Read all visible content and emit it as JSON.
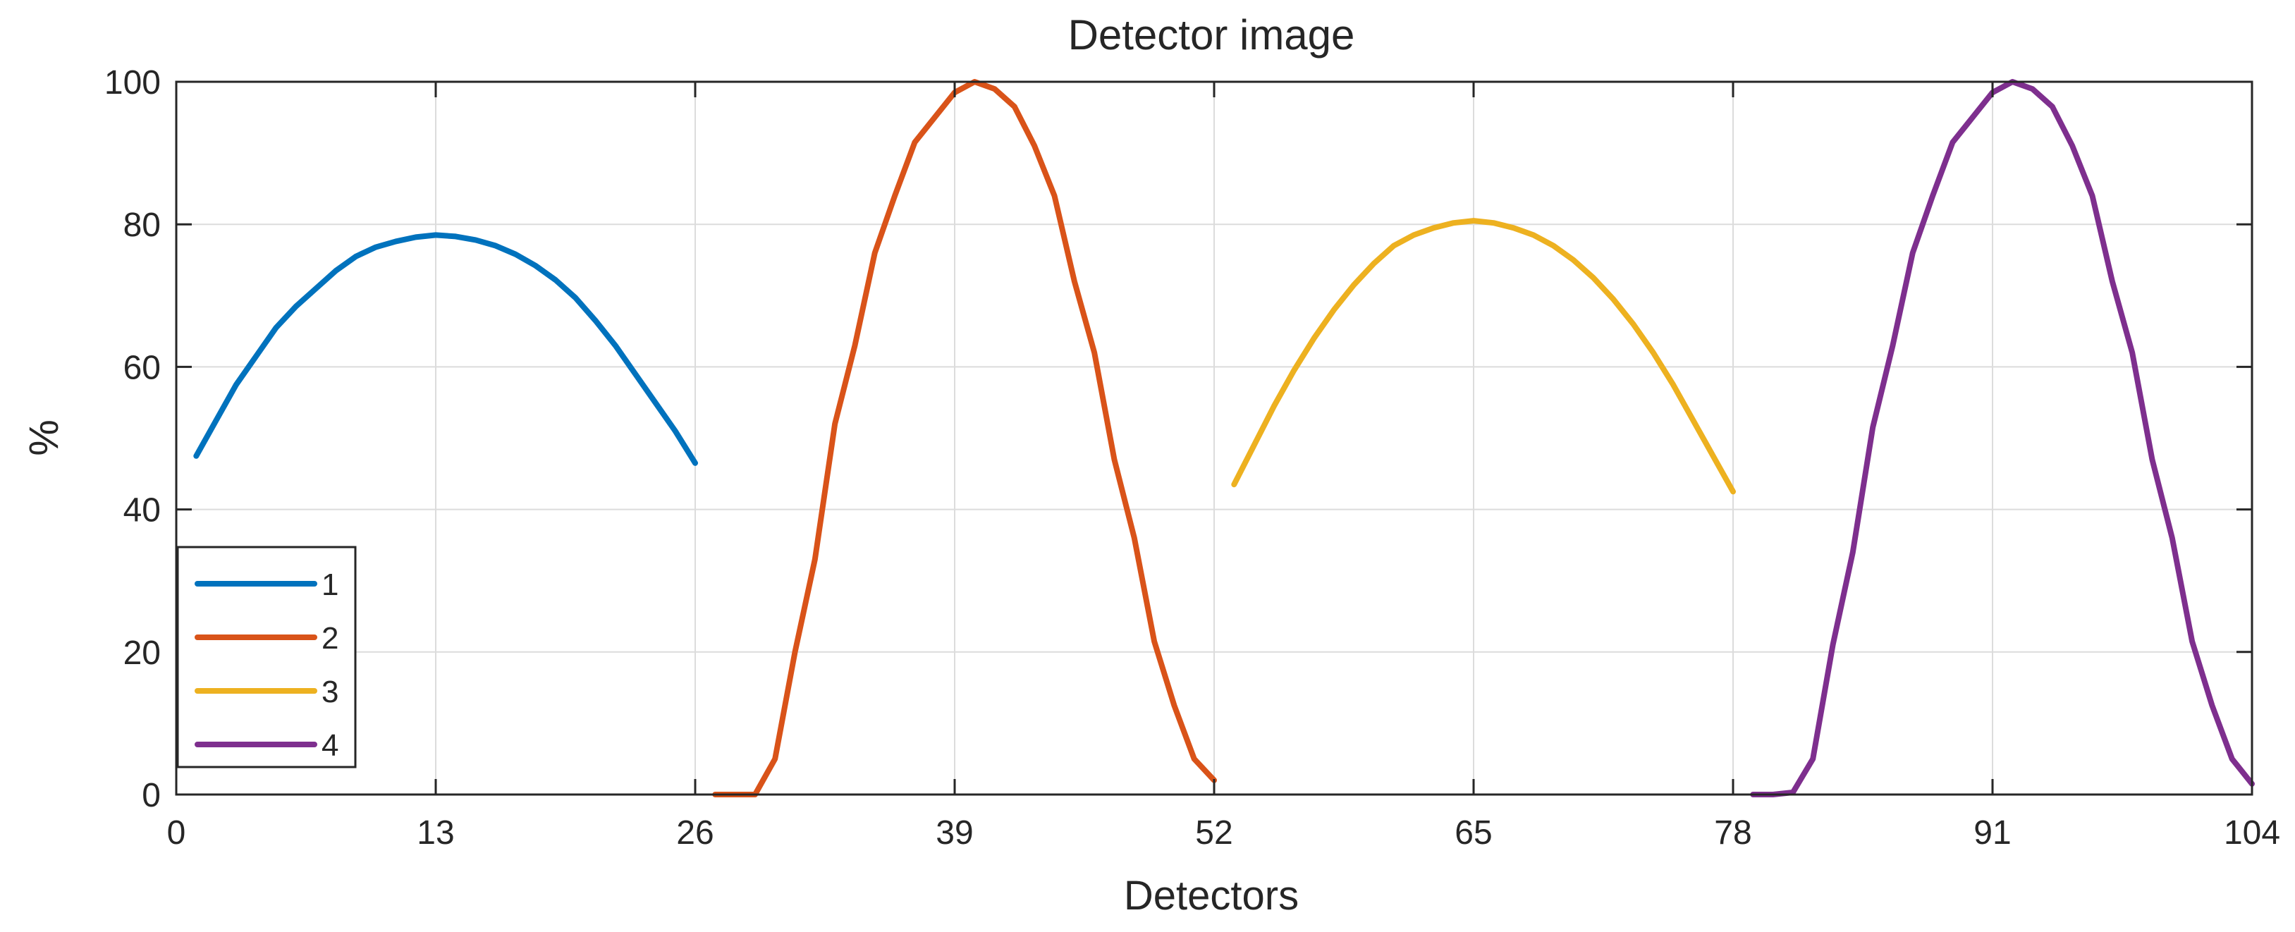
{
  "chart_data": {
    "type": "line",
    "title": "Detector image",
    "xlabel": "Detectors",
    "ylabel": "%",
    "xlim": [
      0,
      104
    ],
    "ylim": [
      0,
      100
    ],
    "xticks": [
      0,
      13,
      26,
      39,
      52,
      65,
      78,
      91,
      104
    ],
    "yticks": [
      0,
      20,
      40,
      60,
      80,
      100
    ],
    "grid": true,
    "legend_position": "bottom-left",
    "series": [
      {
        "name": "1",
        "color": "#0072BD",
        "x": [
          1,
          2,
          3,
          4,
          5,
          6,
          7,
          8,
          9,
          10,
          11,
          12,
          13,
          14,
          15,
          16,
          17,
          18,
          19,
          20,
          21,
          22,
          23,
          24,
          25,
          26
        ],
        "y": [
          47.5,
          52.5,
          57.5,
          61.5,
          65.5,
          68.5,
          71.0,
          73.5,
          75.5,
          76.8,
          77.6,
          78.2,
          78.5,
          78.3,
          77.8,
          77.0,
          75.8,
          74.2,
          72.2,
          69.7,
          66.5,
          63.0,
          59.0,
          55.0,
          51.0,
          46.5
        ]
      },
      {
        "name": "2",
        "color": "#D95319",
        "x": [
          27,
          28,
          29,
          30,
          31,
          32,
          33,
          34,
          35,
          36,
          37,
          38,
          39,
          40,
          41,
          42,
          43,
          44,
          45,
          46,
          47,
          48,
          49,
          50,
          51,
          52
        ],
        "y": [
          0,
          0,
          0,
          5,
          20,
          33,
          52,
          63,
          76,
          84,
          91.5,
          95,
          98.5,
          100,
          99,
          96.5,
          91,
          84,
          72,
          62,
          47,
          36,
          21.5,
          12.5,
          5,
          2
        ]
      },
      {
        "name": "3",
        "color": "#EDB120",
        "x": [
          53,
          54,
          55,
          56,
          57,
          58,
          59,
          60,
          61,
          62,
          63,
          64,
          65,
          66,
          67,
          68,
          69,
          70,
          71,
          72,
          73,
          74,
          75,
          76,
          77,
          78
        ],
        "y": [
          43.5,
          49,
          54.5,
          59.5,
          64,
          68,
          71.5,
          74.5,
          77,
          78.5,
          79.5,
          80.2,
          80.5,
          80.2,
          79.5,
          78.5,
          77,
          75,
          72.5,
          69.5,
          66,
          62,
          57.5,
          52.5,
          47.5,
          42.5
        ]
      },
      {
        "name": "4",
        "color": "#7E2F8E",
        "x": [
          79,
          80,
          81,
          82,
          83,
          84,
          85,
          86,
          87,
          88,
          89,
          90,
          91,
          92,
          93,
          94,
          95,
          96,
          97,
          98,
          99,
          100,
          101,
          102,
          103,
          104
        ],
        "y": [
          0,
          0,
          0.3,
          5,
          21,
          34,
          51.5,
          63,
          76,
          84,
          91.5,
          95,
          98.5,
          100,
          99,
          96.5,
          91,
          84,
          72,
          62,
          47,
          36,
          21.5,
          12.5,
          5,
          1.5
        ]
      }
    ]
  }
}
